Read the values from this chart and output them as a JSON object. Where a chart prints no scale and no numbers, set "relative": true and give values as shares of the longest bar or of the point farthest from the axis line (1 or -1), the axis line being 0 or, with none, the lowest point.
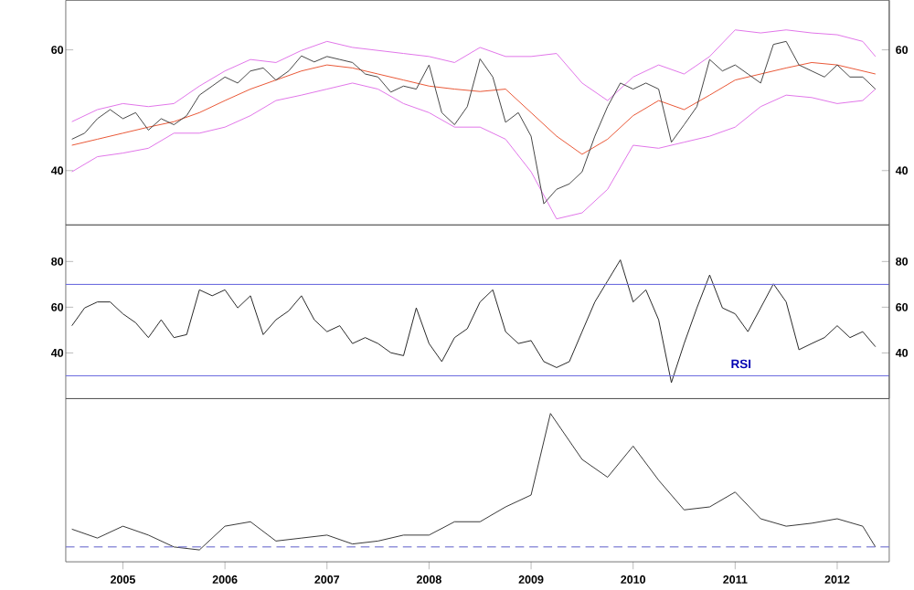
{
  "chart_data": [
    {
      "type": "line",
      "xlim": [
        2004.44,
        2012.51
      ],
      "ylim": [
        31,
        68.2
      ],
      "yticks": [
        40,
        60
      ],
      "y2lim": [
        31,
        68.2
      ],
      "y2ticks": [
        40,
        60
      ],
      "tick_labels": "y",
      "series": [
        {
          "color": "#e070e8",
          "x": [
            2004.5,
            2004.75,
            2005,
            2005.25,
            2005.5,
            2005.75,
            2006,
            2006.25,
            2006.5,
            2006.75,
            2007,
            2007.25,
            2007.5,
            2007.75,
            2008,
            2008.25,
            2008.5,
            2008.75,
            2009,
            2009.25,
            2009.5,
            2009.75,
            2010,
            2010.25,
            2010.5,
            2010.75,
            2011,
            2011.25,
            2011.5,
            2011.75,
            2012,
            2012.25,
            2012.375
          ],
          "values": [
            48.1,
            50.1,
            51.1,
            50.6,
            51.1,
            54.0,
            56.5,
            58.4,
            57.9,
            59.9,
            61.4,
            60.4,
            59.9,
            59.4,
            58.9,
            57.9,
            60.4,
            58.9,
            58.9,
            59.4,
            54.5,
            51.6,
            55.5,
            57.5,
            56.0,
            58.9,
            63.3,
            62.8,
            63.3,
            62.8,
            62.5,
            61.4,
            58.9
          ]
        },
        {
          "color": "#e070e8",
          "x": [
            2004.5,
            2004.75,
            2005,
            2005.25,
            2005.5,
            2005.75,
            2006,
            2006.25,
            2006.5,
            2006.75,
            2007,
            2007.25,
            2007.5,
            2007.75,
            2008,
            2008.25,
            2008.5,
            2008.75,
            2009,
            2009.25,
            2009.5,
            2009.75,
            2010,
            2010.25,
            2010.5,
            2010.75,
            2011,
            2011.25,
            2011.5,
            2011.75,
            2012,
            2012.25,
            2012.375
          ],
          "values": [
            39.8,
            42.3,
            42.9,
            43.7,
            46.2,
            46.2,
            47.2,
            49.1,
            51.6,
            52.5,
            53.5,
            54.5,
            53.5,
            51.1,
            49.6,
            47.2,
            47.2,
            45.2,
            39.8,
            32.0,
            33.0,
            36.9,
            44.2,
            43.7,
            44.7,
            45.7,
            47.2,
            50.6,
            52.5,
            52.1,
            51.1,
            51.6,
            53.5
          ]
        },
        {
          "color": "#e8502e",
          "x": [
            2004.5,
            2004.75,
            2005,
            2005.25,
            2005.5,
            2005.75,
            2006,
            2006.25,
            2006.5,
            2006.75,
            2007,
            2007.25,
            2007.5,
            2007.75,
            2008,
            2008.25,
            2008.5,
            2008.75,
            2009,
            2009.25,
            2009.5,
            2009.75,
            2010,
            2010.25,
            2010.5,
            2010.75,
            2011,
            2011.25,
            2011.5,
            2011.75,
            2012,
            2012.25,
            2012.375
          ],
          "values": [
            44.2,
            45.2,
            46.2,
            47.2,
            48.1,
            49.6,
            51.6,
            53.5,
            55.0,
            56.5,
            57.5,
            57.0,
            56.0,
            55.0,
            54.0,
            53.5,
            53.1,
            53.5,
            49.6,
            45.7,
            42.7,
            45.2,
            49.1,
            51.6,
            50.1,
            52.5,
            55.0,
            56.0,
            57.0,
            57.9,
            57.5,
            56.5,
            56.0
          ]
        },
        {
          "color": "#404040",
          "x": [
            2004.5,
            2004.625,
            2004.75,
            2004.875,
            2005,
            2005.125,
            2005.25,
            2005.375,
            2005.5,
            2005.625,
            2005.75,
            2005.875,
            2006,
            2006.125,
            2006.25,
            2006.375,
            2006.5,
            2006.625,
            2006.75,
            2006.875,
            2007,
            2007.125,
            2007.25,
            2007.375,
            2007.5,
            2007.625,
            2007.75,
            2007.875,
            2008,
            2008.125,
            2008.25,
            2008.375,
            2008.5,
            2008.625,
            2008.75,
            2008.875,
            2009,
            2009.125,
            2009.25,
            2009.375,
            2009.5,
            2009.625,
            2009.75,
            2009.875,
            2010,
            2010.125,
            2010.25,
            2010.375,
            2010.5,
            2010.625,
            2010.75,
            2010.875,
            2011,
            2011.125,
            2011.25,
            2011.375,
            2011.5,
            2011.625,
            2011.75,
            2011.875,
            2012,
            2012.125,
            2012.25,
            2012.375
          ],
          "values": [
            45.2,
            46.2,
            48.6,
            50.1,
            48.6,
            49.6,
            46.7,
            48.6,
            47.6,
            49.1,
            52.5,
            54.0,
            55.5,
            54.5,
            56.5,
            57.0,
            55.0,
            56.5,
            59.0,
            58.0,
            58.9,
            58.4,
            57.9,
            56.0,
            55.5,
            53.0,
            54.0,
            53.5,
            57.5,
            49.6,
            47.6,
            50.6,
            58.5,
            55.5,
            48.0,
            49.6,
            45.7,
            34.5,
            36.9,
            37.8,
            39.8,
            45.7,
            50.6,
            54.5,
            53.5,
            54.5,
            53.5,
            44.7,
            47.6,
            50.6,
            58.4,
            56.5,
            57.5,
            56.0,
            54.5,
            60.9,
            61.4,
            57.5,
            56.5,
            55.5,
            57.5,
            55.5,
            55.5,
            53.5
          ]
        }
      ]
    },
    {
      "type": "line",
      "xlim": [
        2004.44,
        2012.51
      ],
      "ylim": [
        20,
        96
      ],
      "yticks": [
        40,
        60,
        80
      ],
      "y2lim": [
        20,
        96
      ],
      "y2ticks": [
        40,
        60,
        80
      ],
      "tick_labels": "y",
      "annotations": [
        "RSI"
      ],
      "ref_lines": [
        {
          "axis": "y",
          "value": 70,
          "color": "#7070e0"
        },
        {
          "axis": "y",
          "value": 30,
          "color": "#7070e0"
        }
      ],
      "series": [
        {
          "color": "#202020",
          "x": [
            2004.5,
            2004.625,
            2004.75,
            2004.875,
            2005,
            2005.125,
            2005.25,
            2005.375,
            2005.5,
            2005.625,
            2005.75,
            2005.875,
            2006,
            2006.125,
            2006.25,
            2006.375,
            2006.5,
            2006.625,
            2006.75,
            2006.875,
            2007,
            2007.125,
            2007.25,
            2007.375,
            2007.5,
            2007.625,
            2007.75,
            2007.875,
            2008,
            2008.125,
            2008.25,
            2008.375,
            2008.5,
            2008.625,
            2008.75,
            2008.875,
            2009,
            2009.125,
            2009.25,
            2009.375,
            2009.5,
            2009.625,
            2009.75,
            2009.875,
            2010,
            2010.125,
            2010.25,
            2010.375,
            2010.5,
            2010.625,
            2010.75,
            2010.875,
            2011,
            2011.125,
            2011.25,
            2011.375,
            2011.5,
            2011.625,
            2011.75,
            2011.875,
            2012,
            2012.125,
            2012.25,
            2012.375
          ],
          "values": [
            51.9,
            59.7,
            62.3,
            62.3,
            57.1,
            53.2,
            46.7,
            54.5,
            46.7,
            48.0,
            67.6,
            65.0,
            67.6,
            59.7,
            65.0,
            48.0,
            54.5,
            58.4,
            65.0,
            54.5,
            49.3,
            51.9,
            44.1,
            46.7,
            44.1,
            40.1,
            38.8,
            59.7,
            44.1,
            36.2,
            46.7,
            50.6,
            62.3,
            67.6,
            49.3,
            44.1,
            45.4,
            36.2,
            33.6,
            36.2,
            49.3,
            62.3,
            71.5,
            80.7,
            62.3,
            67.6,
            54.5,
            27.0,
            44.1,
            59.7,
            74.1,
            59.7,
            57.1,
            49.3,
            59.7,
            70.2,
            62.3,
            41.4,
            44.1,
            46.7,
            51.9,
            46.7,
            49.3,
            42.7
          ]
        }
      ]
    },
    {
      "type": "line",
      "relative": true,
      "xlim": [
        2004.44,
        2012.51
      ],
      "xticks": [
        2005,
        2006,
        2007,
        2008,
        2009,
        2010,
        2011,
        2012
      ],
      "tick_labels": "x",
      "ref_lines": [
        {
          "axis": "y",
          "value": 0.1,
          "color": "#7070d0",
          "line_style": "dashed"
        }
      ],
      "series": [
        {
          "color": "#303030",
          "x": [
            2004.5,
            2004.75,
            2005,
            2005.25,
            2005.5,
            2005.75,
            2006,
            2006.25,
            2006.5,
            2006.75,
            2007,
            2007.25,
            2007.5,
            2007.75,
            2008,
            2008.25,
            2008.5,
            2008.75,
            2009,
            2009.19,
            2009.5,
            2009.75,
            2010,
            2010.25,
            2010.5,
            2010.75,
            2011,
            2011.25,
            2011.5,
            2011.75,
            2012,
            2012.25,
            2012.375
          ],
          "values": [
            0.22,
            0.16,
            0.24,
            0.18,
            0.1,
            0.08,
            0.24,
            0.27,
            0.14,
            0.16,
            0.18,
            0.12,
            0.14,
            0.18,
            0.18,
            0.27,
            0.27,
            0.37,
            0.45,
            1,
            0.69,
            0.57,
            0.78,
            0.55,
            0.35,
            0.37,
            0.47,
            0.29,
            0.24,
            0.26,
            0.29,
            0.24,
            0.1
          ]
        }
      ]
    }
  ]
}
